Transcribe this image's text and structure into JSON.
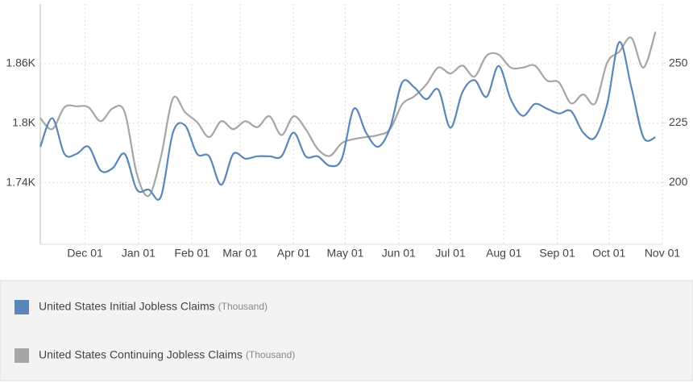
{
  "chart_data": {
    "type": "line",
    "x": [
      0,
      7,
      14,
      21,
      28,
      35,
      42,
      49,
      56,
      63,
      70,
      77,
      84,
      91,
      98,
      105,
      112,
      119,
      126,
      133,
      140,
      147,
      154,
      161,
      168,
      175,
      182,
      189,
      196,
      203,
      210,
      217,
      224,
      231,
      238,
      245,
      252,
      259,
      266,
      273,
      280,
      287,
      294,
      301,
      308,
      315,
      322,
      329,
      336,
      343,
      350,
      357
    ],
    "xlim": [
      0,
      361
    ],
    "xticks": [
      {
        "value": 26,
        "label": "Dec 01"
      },
      {
        "value": 57,
        "label": "Jan 01"
      },
      {
        "value": 88,
        "label": "Feb 01"
      },
      {
        "value": 116,
        "label": "Mar 01"
      },
      {
        "value": 147,
        "label": "Apr 01"
      },
      {
        "value": 177,
        "label": "May 01"
      },
      {
        "value": 208,
        "label": "Jun 01"
      },
      {
        "value": 238,
        "label": "Jul 01"
      },
      {
        "value": 269,
        "label": "Aug 01"
      },
      {
        "value": 300,
        "label": "Sep 01"
      },
      {
        "value": 330,
        "label": "Oct 01"
      },
      {
        "value": 361,
        "label": "Nov 01"
      }
    ],
    "ylim": [
      1678,
      1920
    ],
    "yticks": [
      {
        "value": 1740,
        "label": "1.74K"
      },
      {
        "value": 1800,
        "label": "1.8K"
      },
      {
        "value": 1860,
        "label": "1.86K"
      }
    ],
    "y2lim": [
      174,
      275
    ],
    "y2ticks": [
      200,
      225,
      250
    ],
    "grid": true,
    "series": [
      {
        "name": "United States Initial Jobless Claims",
        "unit": "(Thousand)",
        "color": "#5b86b8",
        "axis": "y2",
        "values": [
          215,
          227,
          212,
          212,
          215,
          205,
          206,
          212,
          197,
          197,
          194,
          221,
          224,
          212,
          211,
          199,
          212,
          210,
          211,
          211,
          211,
          221,
          211,
          211,
          207,
          210,
          231,
          221,
          215,
          223,
          242,
          240,
          235,
          239,
          223,
          238,
          243,
          236,
          249,
          235,
          228,
          233,
          231,
          229,
          230,
          221,
          219,
          233,
          259,
          240,
          219,
          219
        ]
      },
      {
        "name": "United States Continuing Jobless Claims",
        "unit": "(Thousand)",
        "color": "#a6a6a6",
        "axis": "y",
        "values": [
          1805,
          1794,
          1816,
          1817,
          1816,
          1802,
          1815,
          1811,
          1749,
          1727,
          1766,
          1825,
          1811,
          1801,
          1786,
          1802,
          1794,
          1802,
          1796,
          1807,
          1788,
          1807,
          1794,
          1774,
          1767,
          1780,
          1784,
          1786,
          1788,
          1794,
          1819,
          1827,
          1839,
          1856,
          1850,
          1858,
          1847,
          1868,
          1869,
          1856,
          1856,
          1858,
          1843,
          1841,
          1820,
          1829,
          1820,
          1861,
          1872,
          1886,
          1856,
          1892
        ]
      }
    ]
  }
}
